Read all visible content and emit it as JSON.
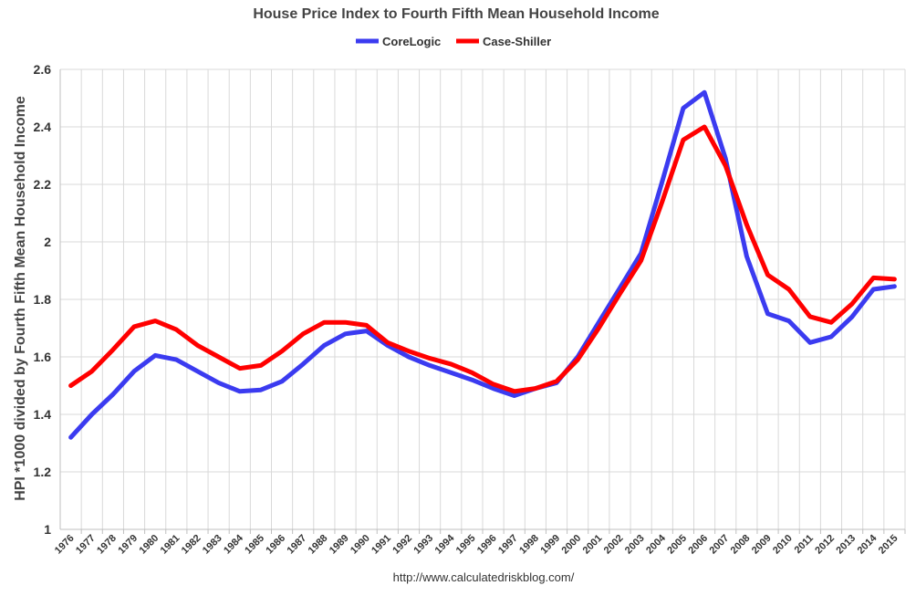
{
  "chart_data": {
    "type": "line",
    "title": "House Price Index to Fourth Fifth Mean Household Income",
    "ylabel": "HPI *1000 divided by Fourth Fifth Mean Household Income",
    "xlabel": "",
    "source": "http://www.calculatedriskblog.com/",
    "ylim": [
      1,
      2.6
    ],
    "yticks": [
      1,
      1.2,
      1.4,
      1.6,
      1.8,
      2,
      2.2,
      2.4,
      2.6
    ],
    "ytick_labels": [
      "1",
      "1.2",
      "1.4",
      "1.6",
      "1.8",
      "2",
      "2.2",
      "2.4",
      "2.6"
    ],
    "grid": true,
    "legend_position": "top-center",
    "categories": [
      "1976",
      "1977",
      "1978",
      "1979",
      "1980",
      "1981",
      "1982",
      "1983",
      "1984",
      "1985",
      "1986",
      "1987",
      "1988",
      "1989",
      "1990",
      "1991",
      "1992",
      "1993",
      "1994",
      "1995",
      "1996",
      "1997",
      "1998",
      "1999",
      "2000",
      "2001",
      "2002",
      "2003",
      "2004",
      "2005",
      "2006",
      "2007",
      "2008",
      "2009",
      "2010",
      "2011",
      "2012",
      "2013",
      "2014",
      "2015"
    ],
    "x_points_per_year": 1,
    "series": [
      {
        "name": "CoreLogic",
        "color": "#3b3bf0",
        "values": [
          1.32,
          1.4,
          1.47,
          1.55,
          1.605,
          1.59,
          1.55,
          1.51,
          1.48,
          1.485,
          1.515,
          1.575,
          1.64,
          1.68,
          1.69,
          1.64,
          1.6,
          1.57,
          1.545,
          1.52,
          1.49,
          1.465,
          1.49,
          1.51,
          1.6,
          1.72,
          1.84,
          1.96,
          2.21,
          2.465,
          2.52,
          2.29,
          1.95,
          1.75,
          1.725,
          1.65,
          1.67,
          1.74,
          1.835,
          1.845
        ]
      },
      {
        "name": "Case-Shiller",
        "color": "#ff0000",
        "values": [
          1.5,
          1.55,
          1.625,
          1.705,
          1.725,
          1.695,
          1.64,
          1.6,
          1.56,
          1.57,
          1.62,
          1.68,
          1.72,
          1.72,
          1.71,
          1.65,
          1.62,
          1.595,
          1.575,
          1.545,
          1.505,
          1.48,
          1.49,
          1.515,
          1.59,
          1.7,
          1.82,
          1.935,
          2.14,
          2.355,
          2.4,
          2.265,
          2.06,
          1.885,
          1.835,
          1.74,
          1.72,
          1.785,
          1.875,
          1.87
        ]
      }
    ]
  }
}
